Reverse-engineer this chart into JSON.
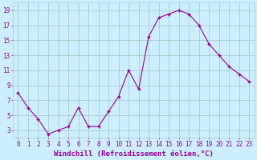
{
  "x": [
    0,
    1,
    2,
    3,
    4,
    5,
    6,
    7,
    8,
    9,
    10,
    11,
    12,
    13,
    14,
    15,
    16,
    17,
    18,
    19,
    20,
    21,
    22,
    23
  ],
  "y": [
    8.0,
    6.0,
    4.5,
    2.5,
    3.0,
    3.5,
    6.0,
    3.5,
    3.5,
    5.5,
    7.5,
    11.0,
    8.5,
    15.5,
    18.0,
    18.5,
    19.0,
    18.5,
    17.0,
    14.5,
    13.0,
    11.5,
    10.5,
    9.5
  ],
  "line_color": "#990099",
  "marker": "+",
  "marker_size": 3,
  "marker_edge_width": 1.0,
  "line_width": 0.8,
  "bg_color": "#cceeff",
  "grid_color": "#aacccc",
  "xlabel": "Windchill (Refroidissement éolien,°C)",
  "xlabel_fontsize": 6.5,
  "yticks": [
    3,
    5,
    7,
    9,
    11,
    13,
    15,
    17,
    19
  ],
  "xticks": [
    0,
    1,
    2,
    3,
    4,
    5,
    6,
    7,
    8,
    9,
    10,
    11,
    12,
    13,
    14,
    15,
    16,
    17,
    18,
    19,
    20,
    21,
    22,
    23
  ],
  "ylim": [
    2,
    20
  ],
  "xlim": [
    -0.5,
    23.5
  ],
  "tick_fontsize": 5.5,
  "fig_width": 3.2,
  "fig_height": 2.0,
  "dpi": 100
}
